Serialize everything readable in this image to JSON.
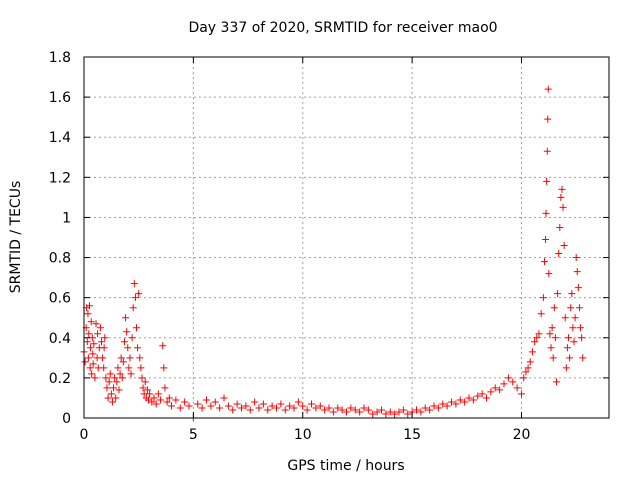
{
  "chart_data": {
    "type": "scatter",
    "title": "Day 337 of 2020, SRMTID for receiver mao0",
    "xlabel": "GPS time / hours",
    "ylabel": "SRMTID / TECUs",
    "xlim": [
      0,
      24
    ],
    "ylim": [
      0,
      1.8
    ],
    "xticks": [
      0,
      5,
      10,
      15,
      20
    ],
    "xtick_labels": [
      "0",
      "5",
      "10",
      "15",
      "20"
    ],
    "yticks": [
      0,
      0.2,
      0.4,
      0.6,
      0.8,
      1.0,
      1.2,
      1.4,
      1.6,
      1.8
    ],
    "ytick_labels": [
      "0",
      "0.2",
      "0.4",
      "0.6",
      "0.8",
      "1",
      "1.2",
      "1.4",
      "1.6",
      "1.8"
    ],
    "grid": true,
    "marker": "+",
    "color": "#ff0000",
    "series": [
      {
        "name": "SRMTID",
        "points": [
          [
            0.0,
            0.33
          ],
          [
            0.05,
            0.28
          ],
          [
            0.1,
            0.45
          ],
          [
            0.12,
            0.55
          ],
          [
            0.15,
            0.38
          ],
          [
            0.18,
            0.52
          ],
          [
            0.2,
            0.3
          ],
          [
            0.22,
            0.42
          ],
          [
            0.25,
            0.56
          ],
          [
            0.28,
            0.25
          ],
          [
            0.3,
            0.35
          ],
          [
            0.33,
            0.48
          ],
          [
            0.35,
            0.22
          ],
          [
            0.38,
            0.4
          ],
          [
            0.4,
            0.32
          ],
          [
            0.42,
            0.27
          ],
          [
            0.45,
            0.37
          ],
          [
            0.5,
            0.2
          ],
          [
            0.55,
            0.47
          ],
          [
            0.6,
            0.3
          ],
          [
            0.62,
            0.42
          ],
          [
            0.65,
            0.25
          ],
          [
            0.7,
            0.35
          ],
          [
            0.75,
            0.45
          ],
          [
            0.8,
            0.38
          ],
          [
            0.85,
            0.3
          ],
          [
            0.9,
            0.25
          ],
          [
            0.92,
            0.35
          ],
          [
            0.95,
            0.4
          ],
          [
            1.0,
            0.2
          ],
          [
            1.05,
            0.15
          ],
          [
            1.1,
            0.1
          ],
          [
            1.15,
            0.18
          ],
          [
            1.2,
            0.22
          ],
          [
            1.25,
            0.12
          ],
          [
            1.3,
            0.08
          ],
          [
            1.35,
            0.15
          ],
          [
            1.4,
            0.2
          ],
          [
            1.45,
            0.1
          ],
          [
            1.5,
            0.18
          ],
          [
            1.55,
            0.25
          ],
          [
            1.6,
            0.14
          ],
          [
            1.65,
            0.22
          ],
          [
            1.7,
            0.3
          ],
          [
            1.75,
            0.2
          ],
          [
            1.8,
            0.28
          ],
          [
            1.85,
            0.38
          ],
          [
            1.9,
            0.5
          ],
          [
            1.95,
            0.43
          ],
          [
            2.0,
            0.35
          ],
          [
            2.05,
            0.25
          ],
          [
            2.1,
            0.3
          ],
          [
            2.15,
            0.22
          ],
          [
            2.2,
            0.4
          ],
          [
            2.25,
            0.55
          ],
          [
            2.3,
            0.67
          ],
          [
            2.35,
            0.6
          ],
          [
            2.4,
            0.45
          ],
          [
            2.45,
            0.35
          ],
          [
            2.5,
            0.62
          ],
          [
            2.55,
            0.3
          ],
          [
            2.6,
            0.25
          ],
          [
            2.65,
            0.2
          ],
          [
            2.7,
            0.15
          ],
          [
            2.75,
            0.12
          ],
          [
            2.8,
            0.18
          ],
          [
            2.85,
            0.1
          ],
          [
            2.9,
            0.14
          ],
          [
            2.95,
            0.09
          ],
          [
            3.0,
            0.12
          ],
          [
            3.1,
            0.08
          ],
          [
            3.2,
            0.1
          ],
          [
            3.3,
            0.07
          ],
          [
            3.4,
            0.12
          ],
          [
            3.5,
            0.09
          ],
          [
            3.6,
            0.36
          ],
          [
            3.65,
            0.25
          ],
          [
            3.7,
            0.15
          ],
          [
            3.8,
            0.08
          ],
          [
            3.9,
            0.1
          ],
          [
            4.0,
            0.06
          ],
          [
            4.2,
            0.09
          ],
          [
            4.4,
            0.05
          ],
          [
            4.6,
            0.08
          ],
          [
            4.8,
            0.06
          ],
          [
            5.0,
            0.0
          ],
          [
            5.2,
            0.07
          ],
          [
            5.4,
            0.05
          ],
          [
            5.6,
            0.09
          ],
          [
            5.8,
            0.06
          ],
          [
            6.0,
            0.08
          ],
          [
            6.2,
            0.05
          ],
          [
            6.4,
            0.1
          ],
          [
            6.6,
            0.06
          ],
          [
            6.8,
            0.04
          ],
          [
            7.0,
            0.07
          ],
          [
            7.2,
            0.05
          ],
          [
            7.4,
            0.06
          ],
          [
            7.6,
            0.04
          ],
          [
            7.8,
            0.08
          ],
          [
            8.0,
            0.05
          ],
          [
            8.2,
            0.07
          ],
          [
            8.4,
            0.04
          ],
          [
            8.6,
            0.06
          ],
          [
            8.8,
            0.05
          ],
          [
            9.0,
            0.07
          ],
          [
            9.2,
            0.04
          ],
          [
            9.4,
            0.06
          ],
          [
            9.6,
            0.05
          ],
          [
            9.8,
            0.08
          ],
          [
            10.0,
            0.06
          ],
          [
            10.2,
            0.04
          ],
          [
            10.4,
            0.07
          ],
          [
            10.6,
            0.05
          ],
          [
            10.8,
            0.06
          ],
          [
            11.0,
            0.04
          ],
          [
            11.2,
            0.05
          ],
          [
            11.4,
            0.03
          ],
          [
            11.6,
            0.05
          ],
          [
            11.8,
            0.04
          ],
          [
            12.0,
            0.03
          ],
          [
            12.2,
            0.05
          ],
          [
            12.4,
            0.04
          ],
          [
            12.6,
            0.03
          ],
          [
            12.8,
            0.05
          ],
          [
            13.0,
            0.04
          ],
          [
            13.2,
            0.02
          ],
          [
            13.4,
            0.03
          ],
          [
            13.6,
            0.04
          ],
          [
            13.8,
            0.02
          ],
          [
            14.0,
            0.03
          ],
          [
            14.2,
            0.02
          ],
          [
            14.4,
            0.03
          ],
          [
            14.6,
            0.04
          ],
          [
            14.8,
            0.02
          ],
          [
            15.0,
            0.03
          ],
          [
            15.2,
            0.04
          ],
          [
            15.4,
            0.03
          ],
          [
            15.6,
            0.05
          ],
          [
            15.8,
            0.04
          ],
          [
            16.0,
            0.06
          ],
          [
            16.2,
            0.05
          ],
          [
            16.4,
            0.07
          ],
          [
            16.6,
            0.06
          ],
          [
            16.8,
            0.08
          ],
          [
            17.0,
            0.07
          ],
          [
            17.2,
            0.09
          ],
          [
            17.4,
            0.08
          ],
          [
            17.6,
            0.1
          ],
          [
            17.8,
            0.09
          ],
          [
            18.0,
            0.11
          ],
          [
            18.2,
            0.12
          ],
          [
            18.4,
            0.1
          ],
          [
            18.6,
            0.13
          ],
          [
            18.8,
            0.15
          ],
          [
            19.0,
            0.14
          ],
          [
            19.2,
            0.17
          ],
          [
            19.4,
            0.2
          ],
          [
            19.6,
            0.18
          ],
          [
            19.8,
            0.15
          ],
          [
            20.0,
            0.12
          ],
          [
            20.1,
            0.2
          ],
          [
            20.2,
            0.23
          ],
          [
            20.3,
            0.25
          ],
          [
            20.4,
            0.28
          ],
          [
            20.5,
            0.33
          ],
          [
            20.6,
            0.38
          ],
          [
            20.7,
            0.4
          ],
          [
            20.8,
            0.42
          ],
          [
            20.9,
            0.52
          ],
          [
            21.0,
            0.6
          ],
          [
            21.05,
            0.78
          ],
          [
            21.1,
            0.89
          ],
          [
            21.12,
            1.02
          ],
          [
            21.15,
            1.18
          ],
          [
            21.18,
            1.33
          ],
          [
            21.2,
            1.49
          ],
          [
            21.22,
            1.64
          ],
          [
            21.25,
            0.72
          ],
          [
            21.3,
            0.42
          ],
          [
            21.35,
            0.35
          ],
          [
            21.4,
            0.45
          ],
          [
            21.45,
            0.3
          ],
          [
            21.5,
            0.55
          ],
          [
            21.55,
            0.4
          ],
          [
            21.6,
            0.18
          ],
          [
            21.65,
            0.62
          ],
          [
            21.7,
            0.82
          ],
          [
            21.75,
            0.95
          ],
          [
            21.8,
            1.1
          ],
          [
            21.85,
            1.14
          ],
          [
            21.9,
            1.05
          ],
          [
            21.95,
            0.86
          ],
          [
            22.0,
            0.5
          ],
          [
            22.05,
            0.25
          ],
          [
            22.1,
            0.35
          ],
          [
            22.15,
            0.4
          ],
          [
            22.2,
            0.3
          ],
          [
            22.25,
            0.55
          ],
          [
            22.3,
            0.62
          ],
          [
            22.35,
            0.45
          ],
          [
            22.4,
            0.38
          ],
          [
            22.45,
            0.5
          ],
          [
            22.5,
            0.8
          ],
          [
            22.55,
            0.73
          ],
          [
            22.6,
            0.65
          ],
          [
            22.65,
            0.55
          ],
          [
            22.7,
            0.45
          ],
          [
            22.75,
            0.4
          ],
          [
            22.8,
            0.3
          ]
        ]
      }
    ]
  }
}
